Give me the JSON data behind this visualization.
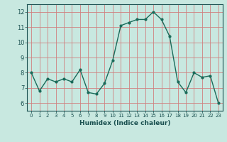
{
  "x": [
    0,
    1,
    2,
    3,
    4,
    5,
    6,
    7,
    8,
    9,
    10,
    11,
    12,
    13,
    14,
    15,
    16,
    17,
    18,
    19,
    20,
    21,
    22,
    23
  ],
  "y": [
    8.0,
    6.8,
    7.6,
    7.4,
    7.6,
    7.4,
    8.2,
    6.7,
    6.6,
    7.3,
    8.8,
    11.1,
    11.3,
    11.5,
    11.5,
    12.0,
    11.5,
    10.4,
    7.4,
    6.7,
    8.0,
    7.7,
    7.8,
    6.0
  ],
  "xlabel": "Humidex (Indice chaleur)",
  "xlim": [
    -0.5,
    23.5
  ],
  "ylim": [
    5.5,
    12.5
  ],
  "yticks": [
    6,
    7,
    8,
    9,
    10,
    11,
    12
  ],
  "xticks": [
    0,
    1,
    2,
    3,
    4,
    5,
    6,
    7,
    8,
    9,
    10,
    11,
    12,
    13,
    14,
    15,
    16,
    17,
    18,
    19,
    20,
    21,
    22,
    23
  ],
  "line_color": "#1a6b5a",
  "marker_color": "#1a6b5a",
  "bg_color": "#c8e8e0",
  "grid_color": "#d08080",
  "tick_label_color": "#1a5050",
  "axis_label_color": "#1a5050"
}
